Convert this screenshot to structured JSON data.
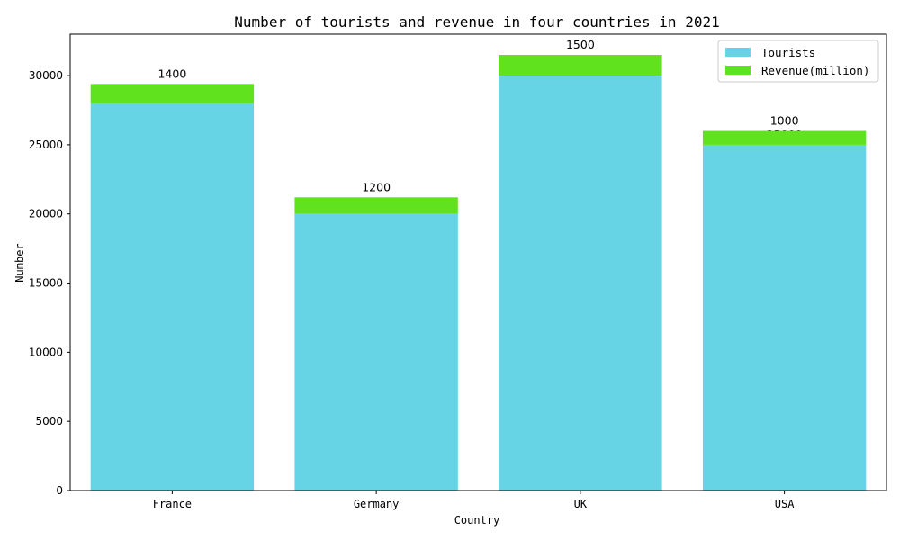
{
  "chart_data": {
    "type": "bar",
    "stacked": true,
    "title": "Number of tourists and revenue in four countries in 2021",
    "xlabel": "Country",
    "ylabel": "Number",
    "categories": [
      "France",
      "Germany",
      "UK",
      "USA"
    ],
    "series": [
      {
        "name": "Tourists",
        "values": [
          28000,
          20000,
          30000,
          25000
        ],
        "color": "#66d4e4"
      },
      {
        "name": "Revenue(million)",
        "values": [
          1400,
          1200,
          1500,
          1000
        ],
        "color": "#60e21f"
      }
    ],
    "ylim": [
      0,
      33000
    ],
    "yticks": [
      0,
      5000,
      10000,
      15000,
      20000,
      25000,
      30000
    ],
    "grid": false,
    "legend_position": "top-right"
  }
}
